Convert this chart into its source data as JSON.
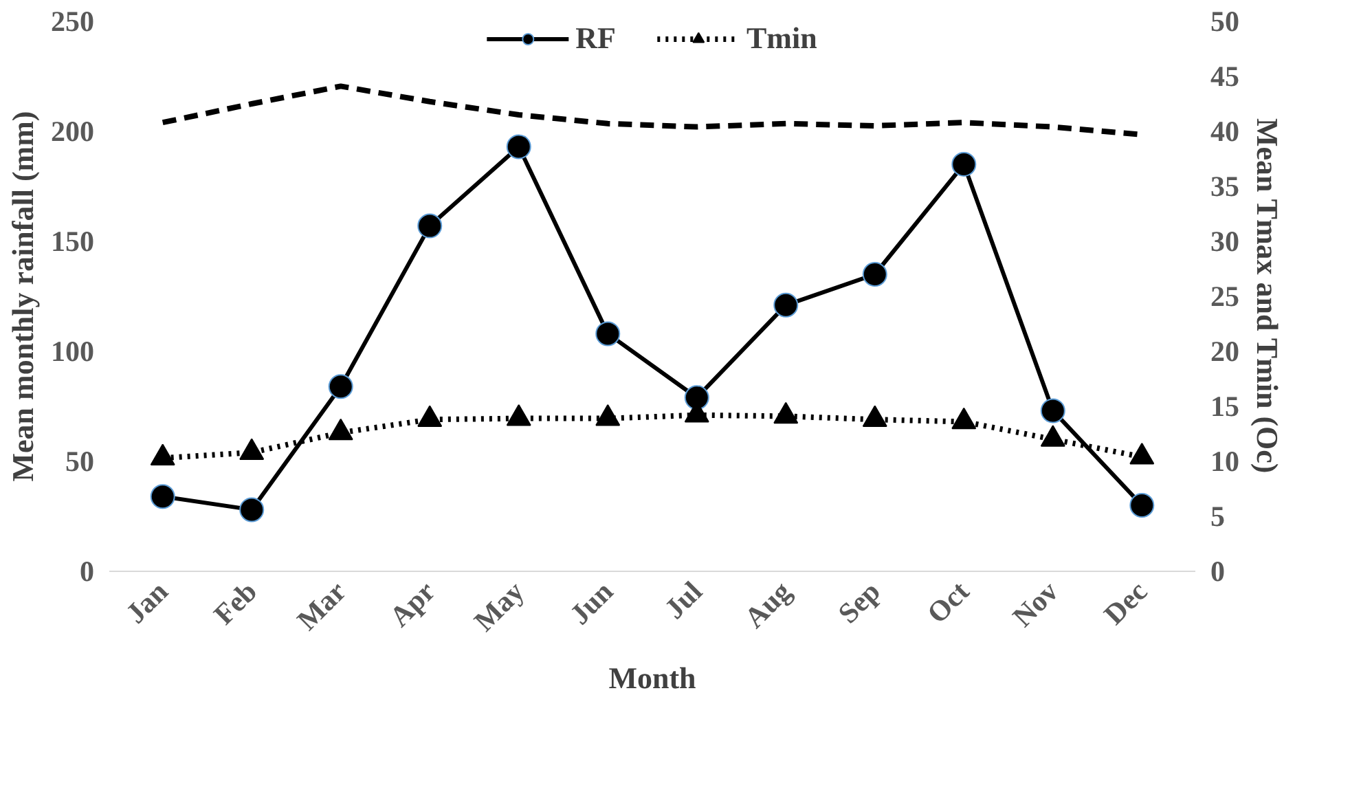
{
  "chart_data": {
    "type": "line",
    "xlabel": "Month",
    "ylabel": "Mean monthly rainfall (mm)",
    "y2label": "Mean Tmax and Tmin (Oc)",
    "categories": [
      "Jan",
      "Feb",
      "Mar",
      "Apr",
      "May",
      "Jun",
      "Jul",
      "Aug",
      "Sep",
      "Oct",
      "Nov",
      "Dec"
    ],
    "series": [
      {
        "name": "RF",
        "color": "#000000",
        "marker": "circle",
        "line_style": "solid",
        "values": [
          34,
          28,
          84,
          157,
          193,
          108,
          79,
          121,
          135,
          185,
          73,
          30
        ]
      },
      {
        "name": "Tmin",
        "color": "#000000",
        "marker": "triangle",
        "line_style": "dotted",
        "axis": "y2",
        "values": [
          10.3,
          10.8,
          12.6,
          13.8,
          13.9,
          13.9,
          14.2,
          14.1,
          13.8,
          13.6,
          12.0,
          10.4
        ]
      },
      {
        "color": "#000000",
        "marker": "none",
        "line_style": "dashed",
        "axis": "y2",
        "values": [
          40.8,
          42.5,
          44.1,
          42.7,
          41.5,
          40.7,
          40.4,
          40.7,
          40.5,
          40.8,
          40.4,
          39.7
        ]
      }
    ],
    "ylim": [
      0,
      250
    ],
    "yticks": [
      0,
      50,
      100,
      150,
      200,
      250
    ],
    "y2lim": [
      0,
      50
    ],
    "y2ticks": [
      0,
      5,
      10,
      15,
      20,
      25,
      30,
      35,
      40,
      45,
      50
    ],
    "grid": false,
    "legend": "top"
  }
}
